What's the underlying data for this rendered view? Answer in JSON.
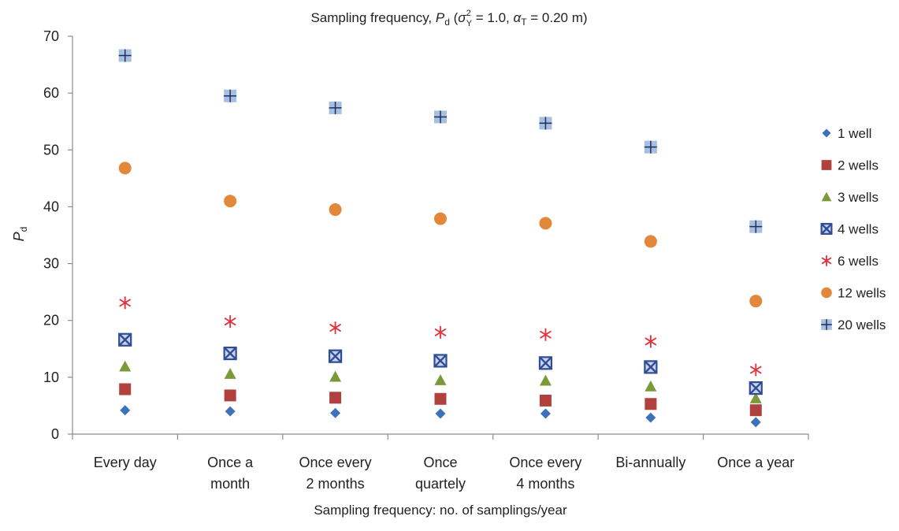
{
  "chart_data": {
    "type": "scatter",
    "title": {
      "text": "Sampling frequency, ",
      "var": "P",
      "var_sub": "d",
      "params_open": " (",
      "sigma": "σ",
      "sigma_sup": "2",
      "sigma_sub": "Y",
      "sigma_value": " = 1.0, ",
      "alpha": "α",
      "alpha_sub": "T",
      "alpha_value": " = 0.20 m)"
    },
    "xlabel": "Sampling frequency: no. of samplings/year",
    "ylabel": {
      "var": "P",
      "sub": "d"
    },
    "categories": [
      [
        "Every day"
      ],
      [
        "Once a",
        "month"
      ],
      [
        "Once every",
        "2 months"
      ],
      [
        "Once",
        "quartely"
      ],
      [
        "Once every",
        "4 months"
      ],
      [
        "Bi-annually"
      ],
      [
        "Once a year"
      ]
    ],
    "ylim": [
      0,
      70
    ],
    "yticks": [
      "0",
      "10",
      "20",
      "30",
      "40",
      "50",
      "60",
      "70"
    ],
    "legend_position": "right",
    "grid": false,
    "series": [
      {
        "name": "1 well",
        "marker": "diamond",
        "color": "#3d72b8",
        "values": [
          4.2,
          4.0,
          3.7,
          3.6,
          3.6,
          2.9,
          2.1
        ]
      },
      {
        "name": "2 wells",
        "marker": "square",
        "color": "#b0413e",
        "values": [
          7.9,
          6.8,
          6.4,
          6.2,
          5.9,
          5.3,
          4.2
        ]
      },
      {
        "name": "3 wells",
        "marker": "triangle",
        "color": "#7a9a3a",
        "values": [
          11.9,
          10.6,
          10.1,
          9.5,
          9.4,
          8.4,
          6.3
        ]
      },
      {
        "name": "4 wells",
        "marker": "boxed-x",
        "color": "#2e4d96",
        "values": [
          16.6,
          14.2,
          13.7,
          12.9,
          12.5,
          11.8,
          8.1
        ]
      },
      {
        "name": "6 wells",
        "marker": "asterisk",
        "color": "#e0303a",
        "values": [
          23.1,
          19.8,
          18.7,
          17.9,
          17.5,
          16.3,
          11.3
        ]
      },
      {
        "name": "12 wells",
        "marker": "circle",
        "color": "#e3883a",
        "values": [
          46.8,
          41.0,
          39.5,
          37.9,
          37.1,
          33.9,
          23.4
        ]
      },
      {
        "name": "20 wells",
        "marker": "square-plus",
        "color": "#a7bfe0",
        "values": [
          66.6,
          59.5,
          57.4,
          55.8,
          54.7,
          50.5,
          36.5
        ]
      }
    ]
  }
}
